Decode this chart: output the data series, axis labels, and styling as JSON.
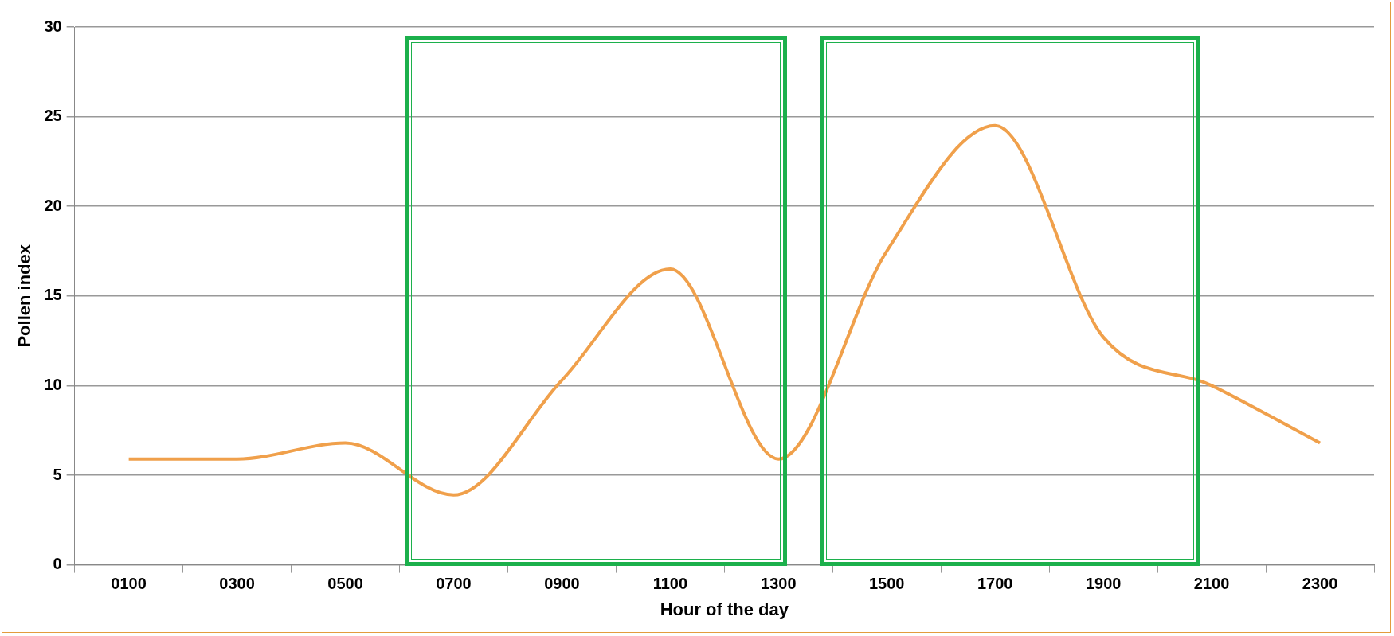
{
  "chart_data": {
    "type": "line",
    "xlabel": "Hour of the day",
    "ylabel": "Pollen index",
    "categories": [
      "0100",
      "0300",
      "0500",
      "0700",
      "0900",
      "1100",
      "1300",
      "1500",
      "1700",
      "1900",
      "2100",
      "2300"
    ],
    "series": [
      {
        "color": "#f0a04b",
        "values": [
          5.9,
          5.9,
          6.8,
          3.9,
          10.3,
          16.5,
          5.9,
          17.5,
          24.5,
          12.7,
          10,
          6.8
        ]
      }
    ],
    "ylim": [
      0,
      30
    ],
    "yticks": [
      0,
      5,
      10,
      15,
      20,
      25,
      30
    ],
    "grid": "y",
    "legend": false,
    "marker": "none",
    "line_style": "solid"
  }
}
